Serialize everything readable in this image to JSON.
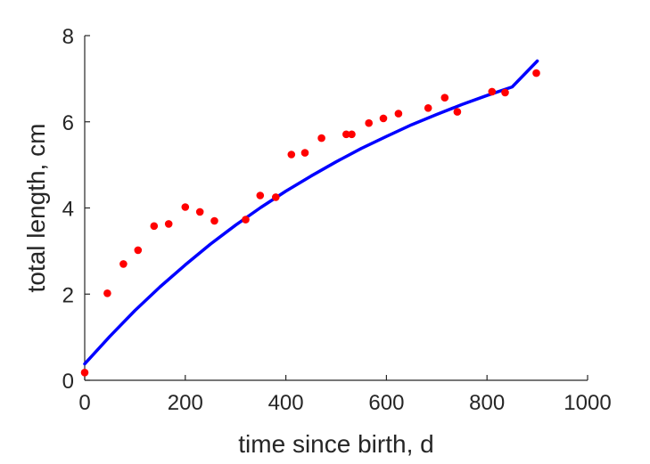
{
  "chart_data": {
    "type": "scatter",
    "title": "",
    "xlabel": "time since birth, d",
    "ylabel": "total length, cm",
    "xlim": [
      0,
      1000
    ],
    "ylim": [
      0,
      8
    ],
    "xticks": [
      "0",
      "200",
      "400",
      "600",
      "800",
      "1000"
    ],
    "yticks": [
      "0",
      "2",
      "4",
      "6",
      "8"
    ],
    "grid": false,
    "legend": "none",
    "series": [
      {
        "kind": "points",
        "color": "#ff0000",
        "points": [
          [
            0,
            0.18
          ],
          [
            45,
            2.02
          ],
          [
            77,
            2.7
          ],
          [
            106,
            3.02
          ],
          [
            138,
            3.58
          ],
          [
            167,
            3.63
          ],
          [
            200,
            4.02
          ],
          [
            229,
            3.91
          ],
          [
            258,
            3.7
          ],
          [
            320,
            3.73
          ],
          [
            349,
            4.29
          ],
          [
            380,
            4.25
          ],
          [
            411,
            5.24
          ],
          [
            438,
            5.28
          ],
          [
            471,
            5.62
          ],
          [
            520,
            5.71
          ],
          [
            531,
            5.71
          ],
          [
            565,
            5.97
          ],
          [
            594,
            6.08
          ],
          [
            624,
            6.19
          ],
          [
            683,
            6.32
          ],
          [
            716,
            6.56
          ],
          [
            741,
            6.23
          ],
          [
            810,
            6.7
          ],
          [
            836,
            6.68
          ],
          [
            898,
            7.13
          ]
        ]
      },
      {
        "kind": "curve",
        "color": "#0000ff",
        "points": [
          [
            0,
            0.38
          ],
          [
            50,
            1.02
          ],
          [
            100,
            1.62
          ],
          [
            150,
            2.17
          ],
          [
            200,
            2.68
          ],
          [
            250,
            3.16
          ],
          [
            300,
            3.6
          ],
          [
            350,
            4.01
          ],
          [
            400,
            4.39
          ],
          [
            450,
            4.74
          ],
          [
            500,
            5.07
          ],
          [
            550,
            5.38
          ],
          [
            600,
            5.66
          ],
          [
            650,
            5.93
          ],
          [
            700,
            6.17
          ],
          [
            750,
            6.4
          ],
          [
            800,
            6.61
          ],
          [
            850,
            6.81
          ],
          [
            900,
            7.41
          ]
        ]
      }
    ]
  }
}
